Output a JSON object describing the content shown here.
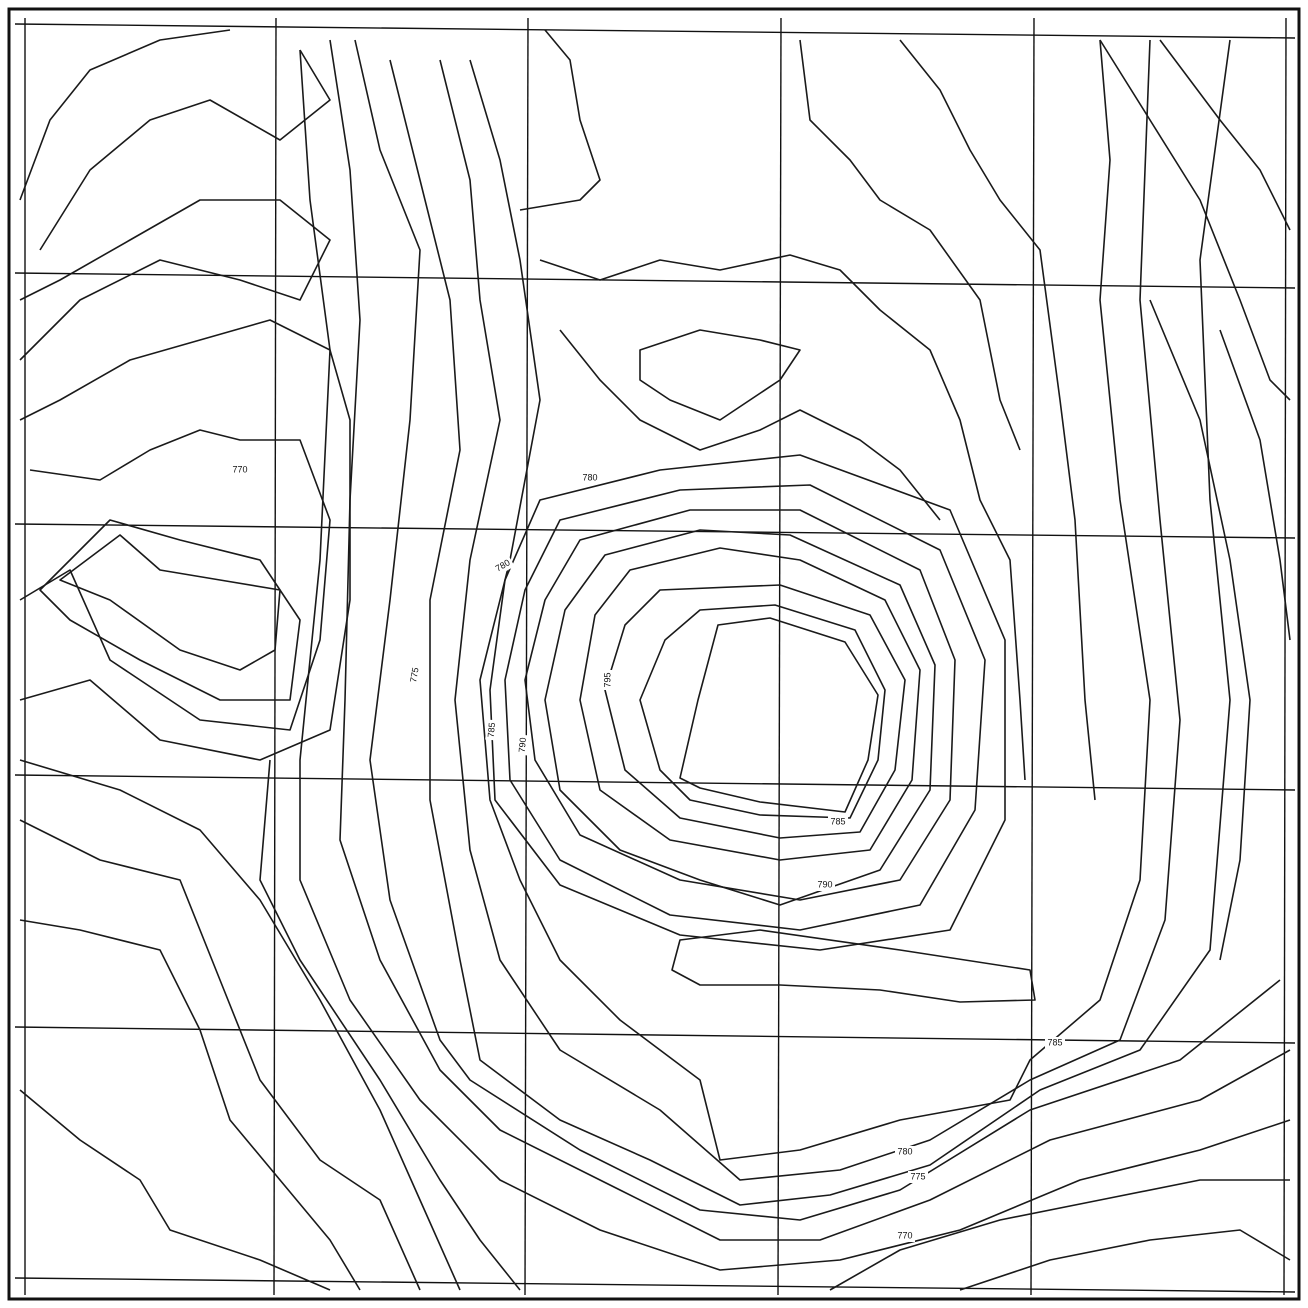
{
  "labels": [
    {
      "text": "770"
    },
    {
      "text": "780"
    },
    {
      "text": "780"
    },
    {
      "text": "775"
    },
    {
      "text": "795"
    },
    {
      "text": "785"
    },
    {
      "text": "790"
    },
    {
      "text": "785"
    },
    {
      "text": "790"
    },
    {
      "text": "785"
    },
    {
      "text": "780"
    },
    {
      "text": "775"
    },
    {
      "text": "770"
    }
  ]
}
